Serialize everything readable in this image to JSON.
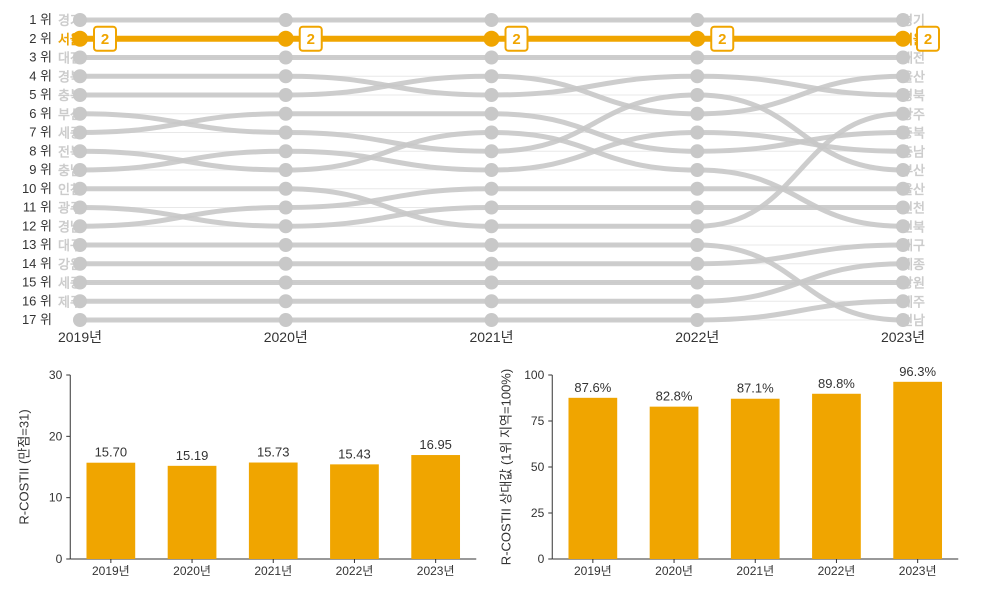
{
  "bump_chart": {
    "type": "bump",
    "background_color": "#ffffff",
    "grid_color": "#e8e8e8",
    "line_color": "#c8c8c8",
    "node_color": "#c8c8c8",
    "highlight_color": "#f0a500",
    "line_width": 5,
    "node_radius": 7,
    "rank_label_color": "#333333",
    "region_label_color": "#cccccc",
    "year_label_color": "#333333",
    "rank_box_fill": "#ffffff",
    "rank_box_text_color": "#f0a500",
    "rank_fontsize": 13,
    "year_fontsize": 14,
    "box_fontsize": 15,
    "years": [
      "2019년",
      "2020년",
      "2021년",
      "2022년",
      "2023년"
    ],
    "ranks": [
      "1 위",
      "2 위",
      "3 위",
      "4 위",
      "5 위",
      "6 위",
      "7 위",
      "8 위",
      "9 위",
      "10 위",
      "11 위",
      "12 위",
      "13 위",
      "14 위",
      "15 위",
      "16 위",
      "17 위"
    ],
    "highlighted_series": "서울",
    "rank_boxes": [
      "2",
      "2",
      "2",
      "2",
      "2"
    ],
    "regions_left": [
      "경기",
      "서울",
      "대전",
      "경북",
      "충북",
      "부산",
      "세종",
      "전북",
      "충남",
      "인천",
      "광주",
      "경남",
      "대구",
      "강원",
      "세종",
      "제주",
      ""
    ],
    "regions_right": [
      "경기",
      "서울",
      "대전",
      "울산",
      "경북",
      "광주",
      "충북",
      "충남",
      "부산",
      "울산",
      "인천",
      "전북",
      "대구",
      "세종",
      "강원",
      "제주",
      "전남"
    ],
    "series": {
      "경기": [
        1,
        1,
        1,
        1,
        1
      ],
      "서울": [
        2,
        2,
        2,
        2,
        2
      ],
      "대전": [
        3,
        3,
        3,
        3,
        3
      ],
      "r4": [
        4,
        4,
        5,
        4,
        5
      ],
      "r5": [
        5,
        5,
        4,
        6,
        4
      ],
      "r6": [
        6,
        7,
        8,
        5,
        9
      ],
      "r7": [
        7,
        6,
        6,
        8,
        7
      ],
      "r8": [
        8,
        9,
        7,
        9,
        12
      ],
      "r9": [
        9,
        8,
        9,
        7,
        8
      ],
      "r10": [
        10,
        10,
        12,
        12,
        6
      ],
      "r11": [
        11,
        12,
        11,
        11,
        11
      ],
      "r12": [
        12,
        11,
        10,
        10,
        10
      ],
      "r13": [
        13,
        13,
        13,
        13,
        17
      ],
      "r14": [
        14,
        14,
        14,
        14,
        13
      ],
      "r15": [
        15,
        15,
        15,
        15,
        15
      ],
      "r16": [
        16,
        16,
        16,
        16,
        14
      ],
      "r17": [
        17,
        17,
        17,
        17,
        16
      ]
    }
  },
  "bar_chart_left": {
    "type": "bar",
    "y_label": "R-COSTII (만점=31)",
    "categories": [
      "2019년",
      "2020년",
      "2021년",
      "2022년",
      "2023년"
    ],
    "values": [
      15.7,
      15.19,
      15.73,
      15.43,
      16.95
    ],
    "value_labels": [
      "15.70",
      "15.19",
      "15.73",
      "15.43",
      "16.95"
    ],
    "bar_color": "#f0a500",
    "ylim": [
      0,
      30
    ],
    "ytick_step": 10,
    "yticks": [
      0,
      10,
      20,
      30
    ],
    "bar_width": 0.6,
    "background_color": "#ffffff",
    "grid_color": "#e0e0e0",
    "axis_color": "#333333",
    "tick_fontsize": 12,
    "label_fontsize": 13,
    "title_fontsize": 13
  },
  "bar_chart_right": {
    "type": "bar",
    "y_label": "R-COSTII 상대값 (1위 지역=100%)",
    "categories": [
      "2019년",
      "2020년",
      "2021년",
      "2022년",
      "2023년"
    ],
    "values": [
      87.6,
      82.8,
      87.1,
      89.8,
      96.3
    ],
    "value_labels": [
      "87.6%",
      "82.8%",
      "87.1%",
      "89.8%",
      "96.3%"
    ],
    "bar_color": "#f0a500",
    "ylim": [
      0,
      100
    ],
    "ytick_step": 25,
    "yticks": [
      0,
      25,
      50,
      75,
      100
    ],
    "bar_width": 0.6,
    "background_color": "#ffffff",
    "grid_color": "#e0e0e0",
    "axis_color": "#333333",
    "tick_fontsize": 12,
    "label_fontsize": 13,
    "title_fontsize": 13
  }
}
